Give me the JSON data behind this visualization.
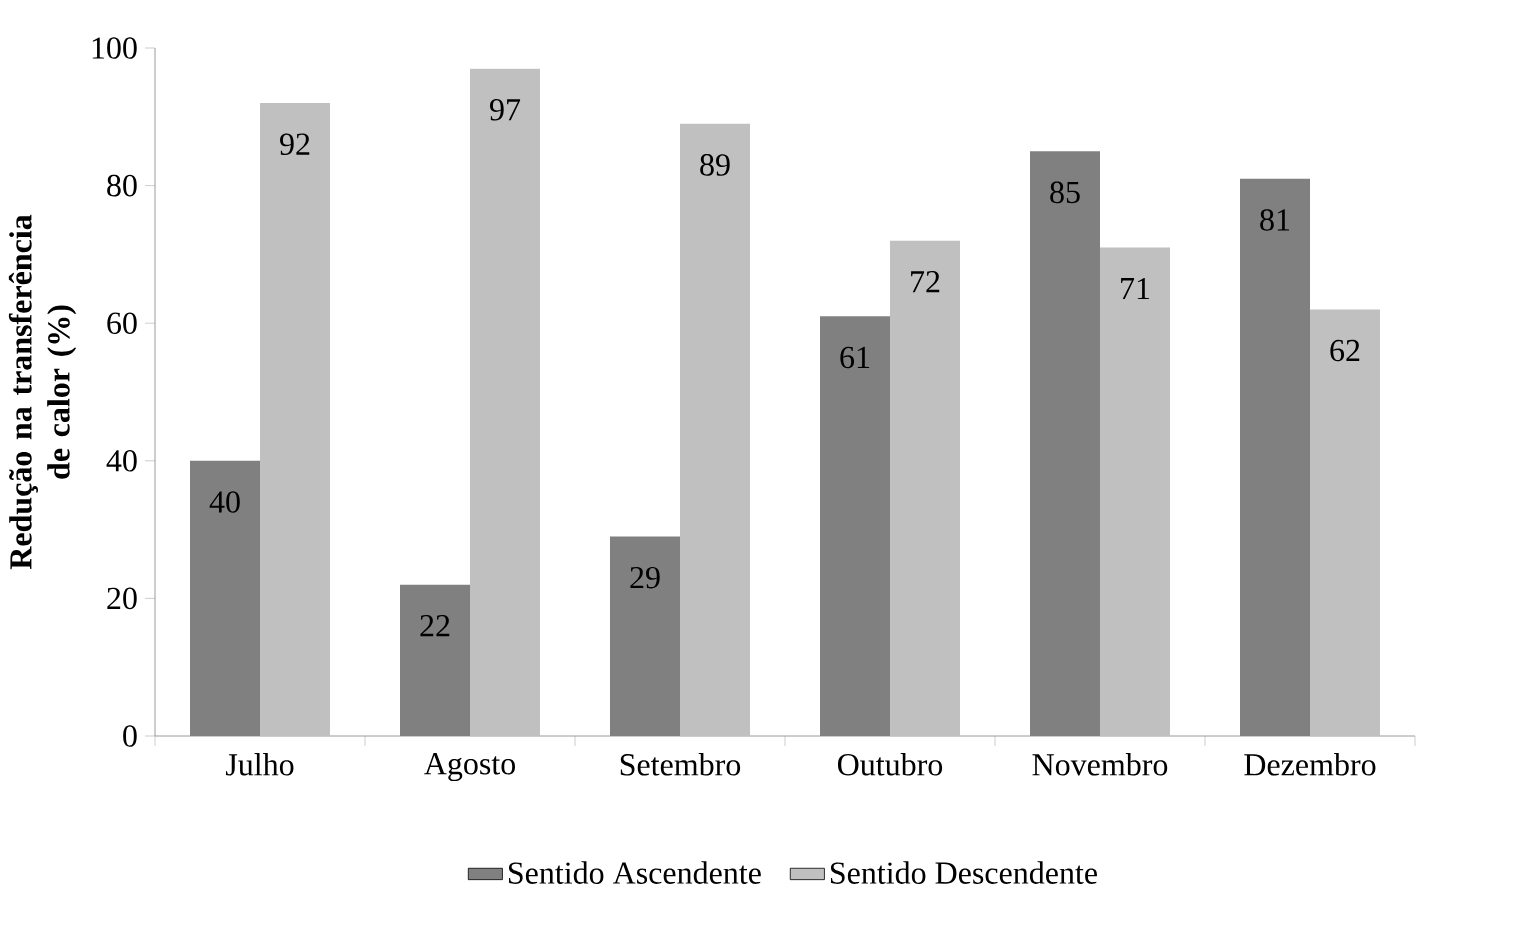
{
  "chart_data": {
    "type": "bar",
    "ylabel": "Redução na transferência de calor (%)",
    "categories": [
      "Julho",
      "Agosto",
      "Setembro",
      "Outubro",
      "Novembro",
      "Dezembro"
    ],
    "series": [
      {
        "name": "Sentido Ascendente",
        "color": "#808080",
        "values": [
          40,
          22,
          29,
          61,
          85,
          81
        ]
      },
      {
        "name": "Sentido Descendente",
        "color": "#c0c0c0",
        "values": [
          92,
          97,
          89,
          72,
          71,
          62
        ]
      }
    ],
    "ylim": [
      0,
      100
    ],
    "yticks": [
      0,
      20,
      40,
      60,
      80,
      100
    ],
    "grid": false,
    "legend": "bottom",
    "data_labels": true
  }
}
